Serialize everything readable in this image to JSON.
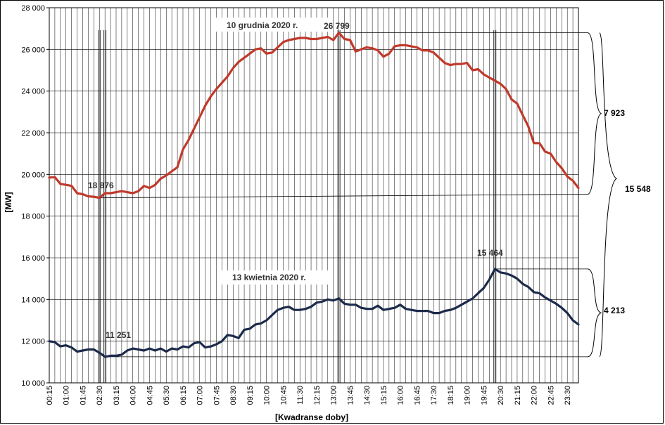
{
  "chart_data": {
    "type": "line",
    "xlabel": "[Kwadranse doby]",
    "ylabel": "[MW]",
    "ylim": [
      10000,
      28000
    ],
    "yticks": [
      "10 000",
      "12 000",
      "14 000",
      "16 000",
      "18 000",
      "20 000",
      "22 000",
      "24 000",
      "26 000",
      "28 000"
    ],
    "ytick_values": [
      10000,
      12000,
      14000,
      16000,
      18000,
      20000,
      22000,
      24000,
      26000,
      28000
    ],
    "xtick_labels": [
      "00:15",
      "01:00",
      "01:45",
      "02:30",
      "03:15",
      "04:00",
      "04:45",
      "05:30",
      "06:15",
      "07:00",
      "07:45",
      "08:30",
      "09:15",
      "10:00",
      "10:45",
      "11:30",
      "12:15",
      "13:00",
      "13:45",
      "14:30",
      "15:15",
      "16:00",
      "16:45",
      "17:30",
      "18:15",
      "19:00",
      "19:45",
      "20:30",
      "21:15",
      "22:00",
      "22:45",
      "23:30"
    ],
    "grid": true,
    "series": [
      {
        "name": "10 grudnia 2020 r.",
        "color": "#c0392b",
        "values": [
          19850,
          19870,
          19550,
          19500,
          19450,
          19100,
          19050,
          18950,
          18930,
          18876,
          19100,
          19100,
          19150,
          19200,
          19150,
          19100,
          19200,
          19450,
          19350,
          19500,
          19800,
          19950,
          20150,
          20350,
          21200,
          21650,
          22200,
          22750,
          23300,
          23750,
          24100,
          24400,
          24700,
          25100,
          25400,
          25600,
          25800,
          26000,
          26050,
          25800,
          25850,
          26100,
          26350,
          26450,
          26500,
          26550,
          26550,
          26500,
          26500,
          26550,
          26600,
          26450,
          26799,
          26500,
          26450,
          25900,
          26000,
          26100,
          26050,
          25950,
          25650,
          25800,
          26150,
          26200,
          26200,
          26150,
          26100,
          25950,
          25950,
          25850,
          25600,
          25350,
          25250,
          25300,
          25300,
          25350,
          25000,
          25050,
          24800,
          24650,
          24500,
          24350,
          24100,
          23600,
          23400,
          22850,
          22300,
          21500,
          21500,
          21100,
          21000,
          20600,
          20300,
          19900,
          19700,
          19350
        ]
      },
      {
        "name": "13 kwietnia 2020 r.",
        "color": "#1b2a4a",
        "values": [
          12000,
          11950,
          11750,
          11800,
          11700,
          11500,
          11550,
          11600,
          11600,
          11450,
          11251,
          11300,
          11300,
          11350,
          11550,
          11650,
          11600,
          11550,
          11650,
          11550,
          11650,
          11500,
          11650,
          11600,
          11750,
          11700,
          11900,
          11950,
          11700,
          11750,
          11850,
          12000,
          12300,
          12250,
          12150,
          12550,
          12600,
          12800,
          12850,
          13000,
          13250,
          13500,
          13600,
          13650,
          13500,
          13500,
          13550,
          13650,
          13850,
          13900,
          14000,
          13950,
          14050,
          13800,
          13750,
          13750,
          13600,
          13550,
          13550,
          13700,
          13500,
          13550,
          13600,
          13750,
          13550,
          13500,
          13450,
          13450,
          13450,
          13350,
          13350,
          13450,
          13500,
          13600,
          13750,
          13900,
          14050,
          14300,
          14550,
          14950,
          15464,
          15300,
          15250,
          15150,
          15000,
          14750,
          14600,
          14350,
          14300,
          14100,
          13950,
          13800,
          13600,
          13350,
          13000,
          12800
        ]
      }
    ],
    "annotations": {
      "dec_peak": "26 799",
      "dec_min": "18 876",
      "apr_peak": "15 464",
      "apr_min": "11 251",
      "dec_range": "7 923",
      "apr_range": "4 213",
      "total_range": "15 548"
    }
  }
}
